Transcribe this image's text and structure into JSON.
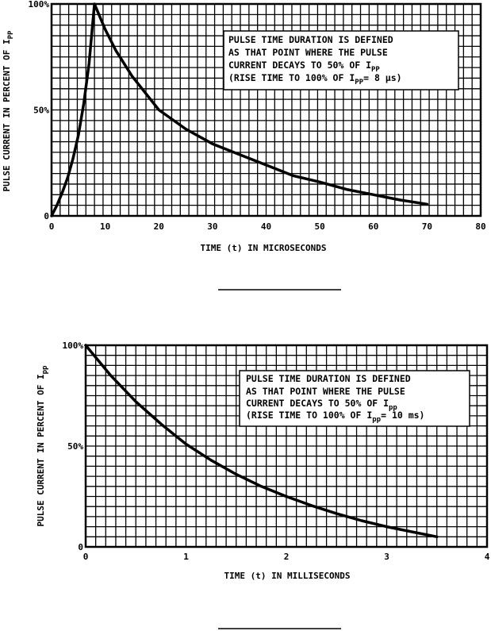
{
  "chart_data": [
    {
      "type": "line",
      "title": "",
      "xlabel": "TIME (t) IN MICROSECONDS",
      "ylabel_main": "PULSE CURRENT IN PERCENT OF I",
      "ylabel_sub": "PP",
      "xlim": [
        0,
        80
      ],
      "ylim": [
        0,
        100
      ],
      "x_ticks": [
        0,
        10,
        20,
        30,
        40,
        50,
        60,
        70,
        80
      ],
      "x_tick_labels": [
        "0",
        "10",
        "20",
        "30",
        "40",
        "50",
        "60",
        "70",
        "80"
      ],
      "y_ticks": [
        0,
        50,
        100
      ],
      "y_tick_labels": [
        "0",
        "50%",
        "100%"
      ],
      "grid_minor_x": 1.6,
      "grid_minor_y": 5,
      "grid": true,
      "series": [
        {
          "x": [
            0,
            1,
            2,
            3,
            4,
            5,
            6,
            7,
            8,
            10,
            12,
            15,
            20,
            25,
            30,
            35,
            40,
            45,
            50,
            55,
            60,
            65,
            70
          ],
          "y": [
            0,
            5,
            11,
            18,
            27,
            38,
            53,
            72,
            100,
            88,
            78,
            66,
            50,
            41,
            34,
            29,
            24,
            19,
            16,
            12.5,
            10,
            7.5,
            5.5
          ]
        }
      ],
      "annotation": {
        "lines": [
          "PULSE TIME DURATION IS DEFINED",
          "AS THAT POINT WHERE THE PULSE",
          "CURRENT DECAYS TO 50% OF I",
          "(RISE TIME TO 100% OF I"
        ],
        "sub": "PP",
        "tail_line3": "",
        "tail_line4": "= 8 μs)"
      }
    },
    {
      "type": "line",
      "title": "",
      "xlabel": "TIME (t) IN MILLISECONDS",
      "ylabel_main": "PULSE CURRENT IN PERCENT OF I",
      "ylabel_sub": "pp",
      "xlim": [
        0,
        4
      ],
      "ylim": [
        0,
        100
      ],
      "x_ticks": [
        0,
        1,
        2,
        3,
        4
      ],
      "x_tick_labels": [
        "0",
        "1",
        "2",
        "3",
        "4"
      ],
      "y_ticks": [
        0,
        50,
        100
      ],
      "y_tick_labels": [
        "0",
        "50%",
        "100%"
      ],
      "grid_minor_x": 0.1,
      "grid_minor_y": 5,
      "grid": true,
      "series": [
        {
          "x": [
            0,
            0.25,
            0.5,
            0.75,
            1.0,
            1.25,
            1.5,
            1.75,
            2.0,
            2.25,
            2.5,
            2.75,
            3.0,
            3.25,
            3.5
          ],
          "y": [
            100,
            85,
            72,
            61,
            51,
            43,
            36,
            30,
            25,
            20.5,
            16.5,
            13,
            10,
            7.5,
            5
          ]
        }
      ],
      "annotation": {
        "lines": [
          "PULSE TIME DURATION IS DEFINED",
          "AS THAT POINT WHERE THE PULSE",
          "CURRENT DECAYS TO 50% OF I",
          "(RISE TIME TO 100% OF I"
        ],
        "sub": "pp",
        "tail_line3": "",
        "tail_line4": "= 10 ms)"
      }
    }
  ]
}
